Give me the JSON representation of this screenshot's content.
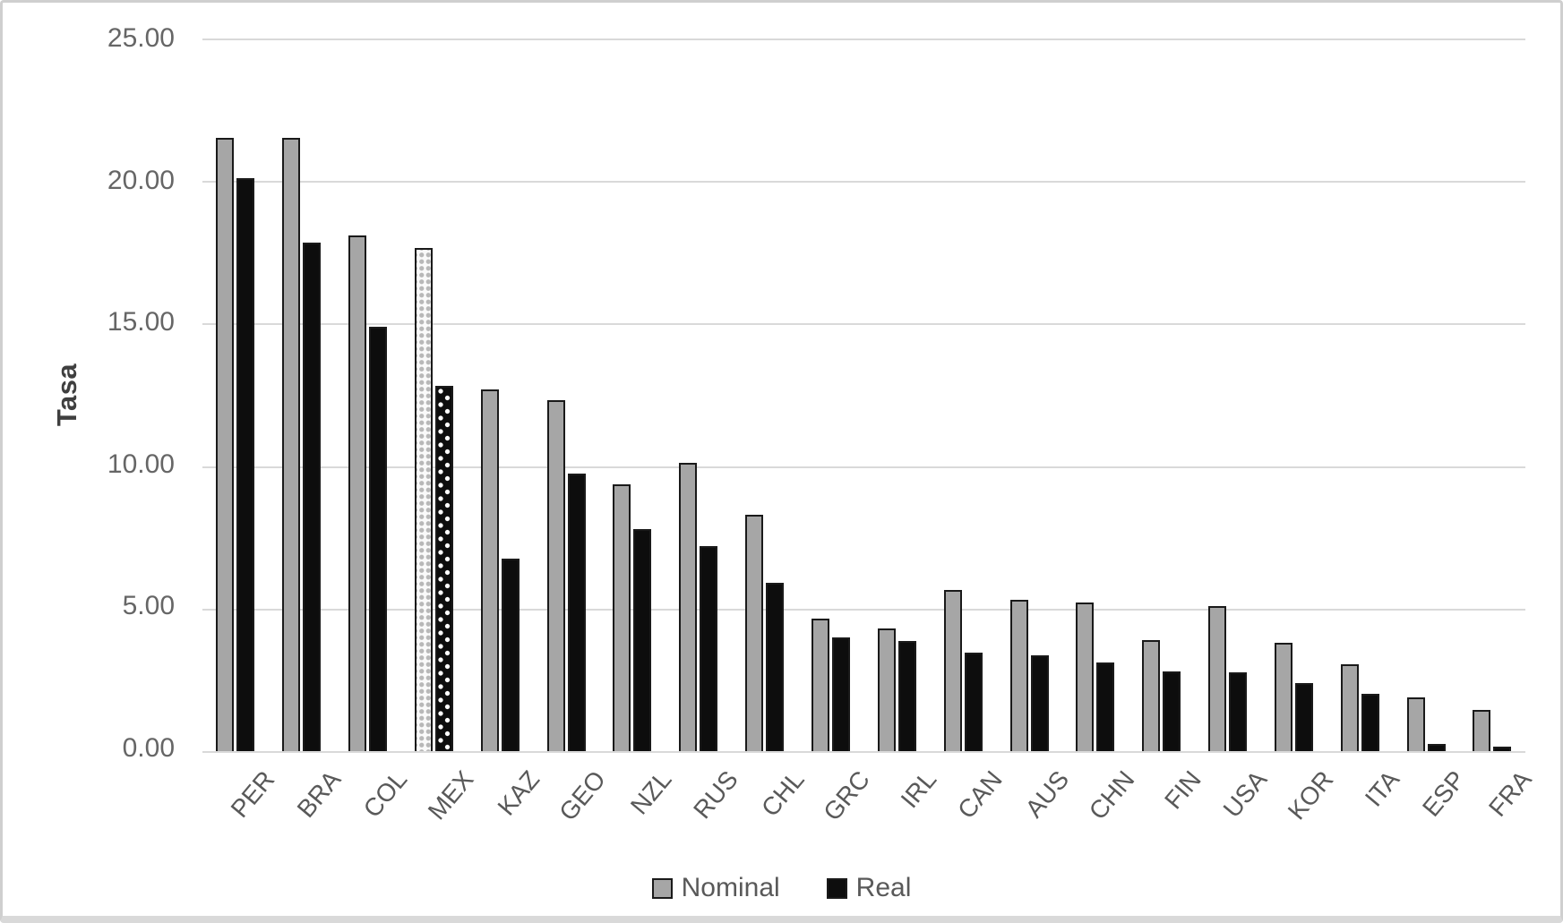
{
  "figure": {
    "background": "#ffffff",
    "border_color": "#cfcfcf",
    "gridline_color": "#d9d9d9",
    "text_color": "#595959"
  },
  "chart_data": {
    "type": "bar",
    "title": "",
    "xlabel": "",
    "ylabel": "Tasa",
    "ylim": [
      0,
      25
    ],
    "ytick_labels": [
      "25.00",
      "20.00",
      "15.00",
      "10.00",
      "5.00",
      "0.00"
    ],
    "grid": "horizontal",
    "legend_position": "bottom",
    "highlight_category": "MEX",
    "highlight_style": "dotted-pattern",
    "categories": [
      "PER",
      "BRA",
      "COL",
      "MEX",
      "KAZ",
      "GEO",
      "NZL",
      "RUS",
      "CHL",
      "GRC",
      "IRL",
      "CAN",
      "AUS",
      "CHN",
      "FIN",
      "USA",
      "KOR",
      "ITA",
      "ESP",
      "FRA"
    ],
    "series": [
      {
        "name": "Nominal",
        "color": "#a6a6a6",
        "values": [
          21.5,
          21.5,
          18.1,
          17.65,
          12.7,
          12.3,
          9.35,
          10.1,
          8.3,
          4.65,
          4.3,
          5.65,
          5.3,
          5.2,
          3.9,
          5.1,
          3.8,
          3.05,
          1.9,
          1.45
        ]
      },
      {
        "name": "Real",
        "color": "#0d0d0d",
        "values": [
          20.1,
          17.85,
          14.9,
          12.8,
          6.75,
          9.75,
          7.8,
          7.2,
          5.9,
          4.0,
          3.85,
          3.45,
          3.35,
          3.1,
          2.8,
          2.75,
          2.4,
          2.0,
          0.25,
          0.15
        ]
      }
    ]
  }
}
